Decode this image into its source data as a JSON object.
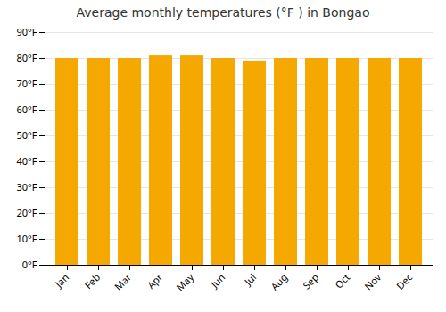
{
  "chart_data": {
    "type": "bar",
    "title": "Average monthly temperatures (°F ) in Bongao",
    "categories": [
      "Jan",
      "Feb",
      "Mar",
      "Apr",
      "May",
      "Jun",
      "Jul",
      "Aug",
      "Sep",
      "Oct",
      "Nov",
      "Dec"
    ],
    "values": [
      80,
      80,
      80,
      81,
      81,
      80,
      79,
      80,
      80,
      80,
      80,
      80
    ],
    "color": "#F5A800",
    "ylim": [
      0,
      90
    ],
    "yticks": [
      {
        "value": 0,
        "label": "0°F"
      },
      {
        "value": 10,
        "label": "10°F"
      },
      {
        "value": 20,
        "label": "20°F"
      },
      {
        "value": 30,
        "label": "30°F"
      },
      {
        "value": 40,
        "label": "40°F"
      },
      {
        "value": 50,
        "label": "50°F"
      },
      {
        "value": 60,
        "label": "60°F"
      },
      {
        "value": 70,
        "label": "70°F"
      },
      {
        "value": 80,
        "label": "80°F"
      },
      {
        "value": 90,
        "label": "90°F"
      }
    ],
    "grid": true
  }
}
